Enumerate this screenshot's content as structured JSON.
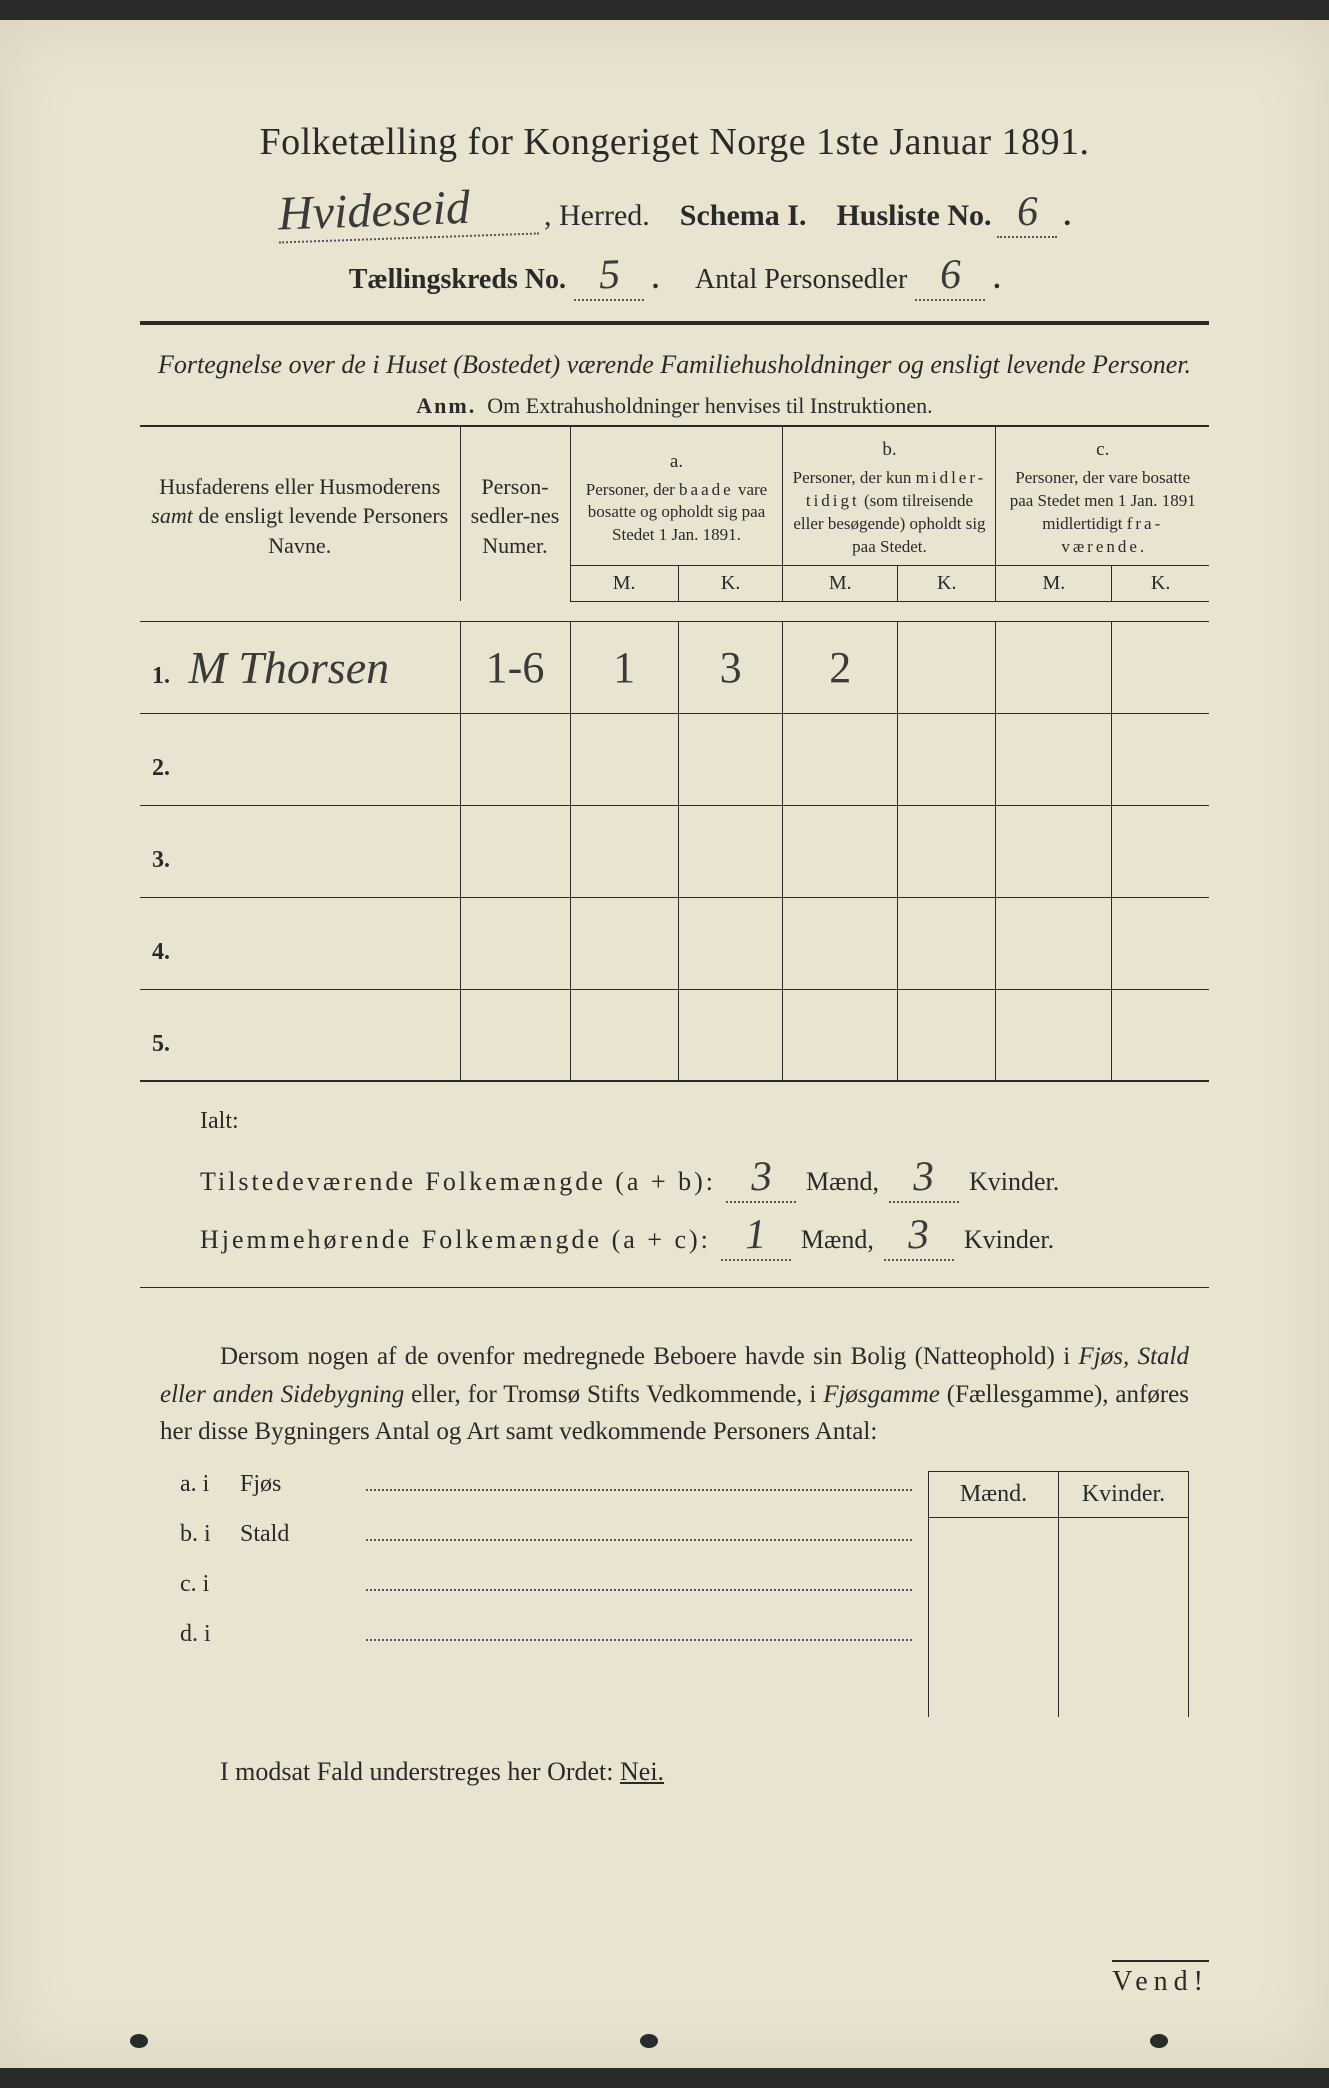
{
  "colors": {
    "paper": "#e8e4d0",
    "ink": "#2a2a2a",
    "handwriting": "#3a3a3a",
    "background": "#2a2a2a"
  },
  "title": "Folketælling for Kongeriget Norge 1ste Januar 1891.",
  "header": {
    "herred_hw": "Hvideseid",
    "herred_label": ", Herred.",
    "schema": "Schema I.",
    "husliste_label": "Husliste No.",
    "husliste_no": "6",
    "kreds_label": "Tællingskreds No.",
    "kreds_no": "5",
    "antal_label": "Antal Personsedler",
    "antal_no": "6"
  },
  "subtitle": "Fortegnelse over de i Huset (Bostedet) værende Familiehusholdninger og ensligt levende Personer.",
  "anm_label": "Anm.",
  "anm_text": "Om Extrahusholdninger henvises til Instruktionen.",
  "table": {
    "col_name": "Husfaderens eller Husmoderens samt de ensligt levende Personers Navne.",
    "col_numer": "Person-sedler-nes Numer.",
    "col_a_label": "a.",
    "col_a": "Personer, der baade vare bosatte og opholdt sig paa Stedet 1 Jan. 1891.",
    "col_b_label": "b.",
    "col_b": "Personer, der kun midlertidigt (som tilreisende eller besøgende) opholdt sig paa Stedet.",
    "col_c_label": "c.",
    "col_c": "Personer, der vare bosatte paa Stedet men 1 Jan. 1891 midlertidigt fraværende.",
    "mk_m": "M.",
    "mk_k": "K.",
    "rows": [
      {
        "n": "1.",
        "name": "M Thorsen",
        "numer": "1-6",
        "a_m": "1",
        "a_k": "3",
        "b_m": "2",
        "b_k": "",
        "c_m": "",
        "c_k": ""
      },
      {
        "n": "2.",
        "name": "",
        "numer": "",
        "a_m": "",
        "a_k": "",
        "b_m": "",
        "b_k": "",
        "c_m": "",
        "c_k": ""
      },
      {
        "n": "3.",
        "name": "",
        "numer": "",
        "a_m": "",
        "a_k": "",
        "b_m": "",
        "b_k": "",
        "c_m": "",
        "c_k": ""
      },
      {
        "n": "4.",
        "name": "",
        "numer": "",
        "a_m": "",
        "a_k": "",
        "b_m": "",
        "b_k": "",
        "c_m": "",
        "c_k": ""
      },
      {
        "n": "5.",
        "name": "",
        "numer": "",
        "a_m": "",
        "a_k": "",
        "b_m": "",
        "b_k": "",
        "c_m": "",
        "c_k": ""
      }
    ]
  },
  "ialt": "Ialt:",
  "totals": {
    "tilstede_label": "Tilstedeværende Folkemængde (a + b):",
    "tilstede_m": "3",
    "tilstede_k": "3",
    "hjemme_label": "Hjemmehørende Folkemængde (a + c):",
    "hjemme_m": "1",
    "hjemme_k": "3",
    "maend": "Mænd,",
    "kvinder": "Kvinder."
  },
  "paragraph_parts": {
    "p1": "Dersom nogen af de ovenfor medregnede Beboere havde sin Bolig (Natteophold) i ",
    "em1": "Fjøs, Stald eller anden Sidebygning",
    "p2": " eller, for Tromsø Stifts Vedkommende, i ",
    "em2": "Fjøsgamme",
    "p3": " (Fællesgamme), anføres her disse Bygningers Antal og Art samt vedkommende Personers Antal:"
  },
  "lower": {
    "maend": "Mænd.",
    "kvinder": "Kvinder.",
    "rows": [
      {
        "lbl": "a. i",
        "loc": "Fjøs"
      },
      {
        "lbl": "b. i",
        "loc": "Stald"
      },
      {
        "lbl": "c. i",
        "loc": ""
      },
      {
        "lbl": "d. i",
        "loc": ""
      }
    ]
  },
  "nei": {
    "text": "I modsat Fald understreges her Ordet: ",
    "word": "Nei."
  },
  "vend": "Vend!"
}
